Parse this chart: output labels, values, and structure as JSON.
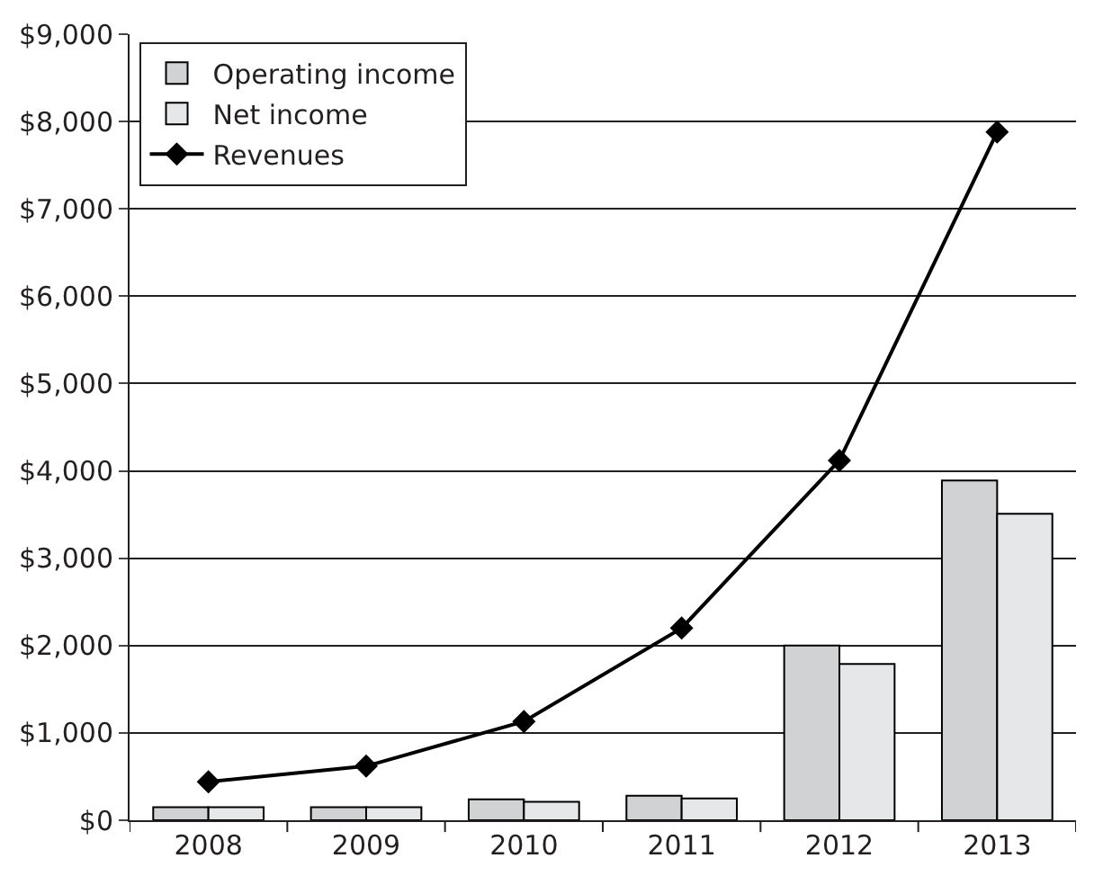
{
  "chart_data": {
    "type": "bar",
    "categories": [
      "2008",
      "2009",
      "2010",
      "2011",
      "2012",
      "2013"
    ],
    "series": [
      {
        "name": "Operating income",
        "color": "#d1d2d4",
        "values": [
          150,
          150,
          240,
          280,
          2000,
          3890
        ]
      },
      {
        "name": "Net income",
        "color": "#e6e7e8",
        "values": [
          150,
          150,
          210,
          250,
          1790,
          3510
        ]
      },
      {
        "name": "Revenues",
        "type": "line",
        "color": "#000000",
        "values": [
          440,
          620,
          1130,
          2200,
          4120,
          7880
        ]
      }
    ],
    "ylim": [
      0,
      9000
    ],
    "yticks": [
      {
        "value": 0,
        "label": "$0"
      },
      {
        "value": 1000,
        "label": "$1,000"
      },
      {
        "value": 2000,
        "label": "$2,000"
      },
      {
        "value": 3000,
        "label": "$3,000"
      },
      {
        "value": 4000,
        "label": "$4,000"
      },
      {
        "value": 5000,
        "label": "$5,000"
      },
      {
        "value": 6000,
        "label": "$6,000"
      },
      {
        "value": 7000,
        "label": "$7,000"
      },
      {
        "value": 8000,
        "label": "$8,000"
      },
      {
        "value": 9000,
        "label": "$9,000"
      }
    ],
    "grid": "y",
    "legend": "top left",
    "marker": "diamond",
    "line_style": "solid"
  }
}
